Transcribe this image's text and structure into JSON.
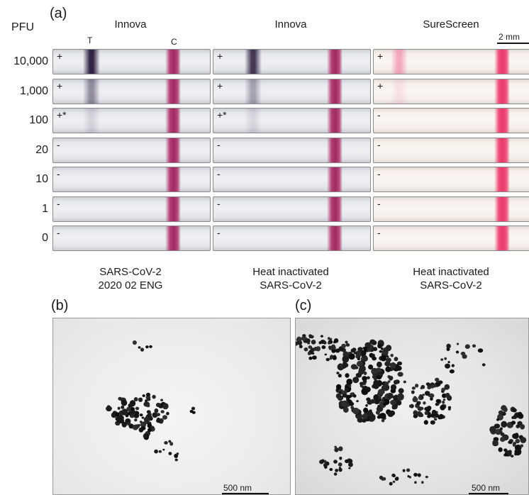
{
  "panel_a": {
    "letter": "(a)",
    "pfu_header": "PFU",
    "columns": [
      {
        "header": "Innova",
        "caption_line1": "SARS-CoV-2",
        "caption_line2": "2020 02 ENG"
      },
      {
        "header": "Innova",
        "caption_line1": "Heat inactivated",
        "caption_line2": "SARS-CoV-2"
      },
      {
        "header": "SureScreen",
        "caption_line1": "Heat inactivated",
        "caption_line2": "SARS-CoV-2"
      }
    ],
    "test_line_label": "T",
    "control_line_label": "C",
    "scale_bar_label": "2 mm",
    "rows": [
      {
        "pfu": "10,000",
        "results": [
          "+",
          "+",
          "+"
        ],
        "t_intensity": [
          0.95,
          0.85,
          0.55
        ]
      },
      {
        "pfu": "1,000",
        "results": [
          "+",
          "+",
          "+"
        ],
        "t_intensity": [
          0.45,
          0.35,
          0.15
        ]
      },
      {
        "pfu": "100",
        "results": [
          "+*",
          "+*",
          "-"
        ],
        "t_intensity": [
          0.12,
          0.1,
          0
        ]
      },
      {
        "pfu": "20",
        "results": [
          "-",
          "-",
          "-"
        ],
        "t_intensity": [
          0,
          0,
          0
        ]
      },
      {
        "pfu": "10",
        "results": [
          "-",
          "-",
          "-"
        ],
        "t_intensity": [
          0,
          0,
          0
        ]
      },
      {
        "pfu": "1",
        "results": [
          "-",
          "-",
          "-"
        ],
        "t_intensity": [
          0,
          0,
          0
        ]
      },
      {
        "pfu": "0",
        "results": [
          "-",
          "-",
          "-"
        ],
        "t_intensity": [
          0,
          0,
          0
        ]
      }
    ]
  },
  "panel_b": {
    "letter": "(b)",
    "scale_bar_label": "500 nm"
  },
  "panel_c": {
    "letter": "(c)",
    "scale_bar_label": "500 nm"
  },
  "colors": {
    "innova_control": "#9d2a61",
    "innova_test": "#3a2a4a",
    "sure_control": "#e83a6b",
    "sure_test": "#f07a98"
  }
}
